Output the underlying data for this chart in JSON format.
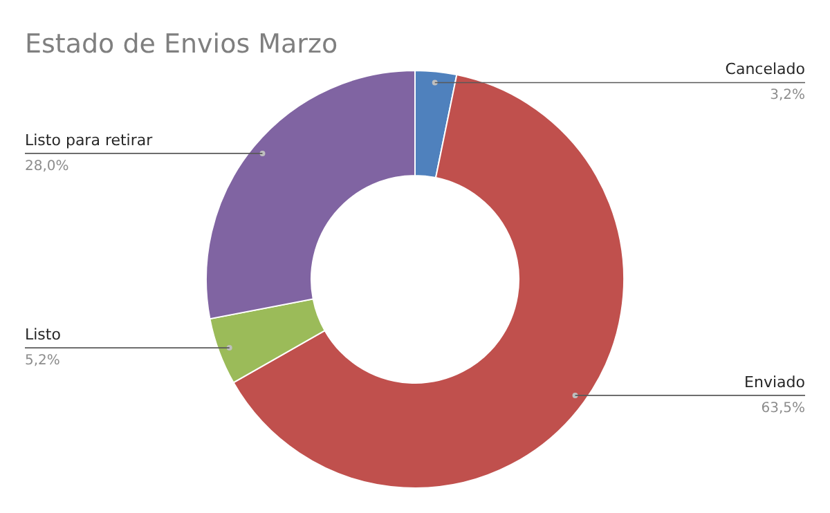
{
  "chart_data": {
    "type": "donut",
    "title": "Estado de Envios Marzo",
    "categories": [
      "Cancelado",
      "Enviado",
      "Listo",
      "Listo para retirar"
    ],
    "values": [
      3.2,
      63.5,
      5.2,
      28.0
    ],
    "value_labels": [
      "3,2%",
      "63,5%",
      "5,2%",
      "28,0%"
    ],
    "colors": [
      "#4f81bd",
      "#c0504d",
      "#9bbb59",
      "#8064a2"
    ]
  }
}
